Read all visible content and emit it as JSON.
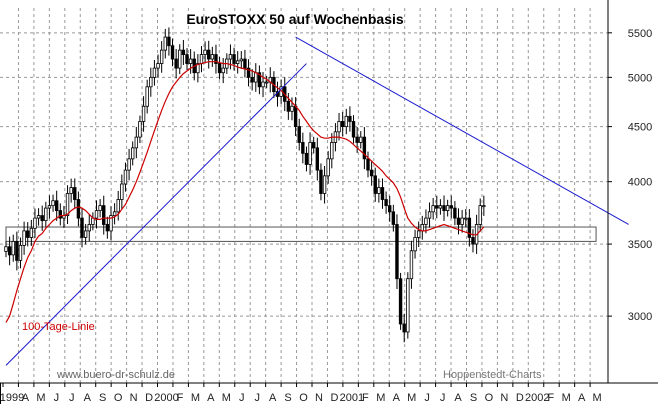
{
  "chart_data": {
    "type": "candlestick",
    "title": "EuroSTOXX 50 auf Wochenbasis",
    "ylim": [
      2600,
      5800
    ],
    "y_scale": "log",
    "y_ticks": [
      3000,
      3500,
      4000,
      4500,
      5000,
      5500
    ],
    "x_ticks": [
      "1999",
      "A",
      "M",
      "J",
      "J",
      "A",
      "S",
      "O",
      "N",
      "D",
      "2000",
      "F",
      "M",
      "A",
      "M",
      "J",
      "J",
      "A",
      "S",
      "O",
      "N",
      "D",
      "2001",
      "F",
      "M",
      "A",
      "M",
      "J",
      "J",
      "A",
      "S",
      "O",
      "N",
      "D",
      "2002",
      "F",
      "M",
      "A",
      "M"
    ],
    "x_start": "1999-02-01",
    "weekly_close": [
      3480,
      3420,
      3520,
      3380,
      3490,
      3600,
      3550,
      3620,
      3700,
      3720,
      3680,
      3780,
      3800,
      3840,
      3760,
      3700,
      3720,
      3900,
      3950,
      3850,
      3700,
      3550,
      3600,
      3650,
      3700,
      3760,
      3800,
      3650,
      3600,
      3720,
      3750,
      3850,
      3980,
      4100,
      4200,
      4300,
      4400,
      4550,
      4700,
      4900,
      5000,
      5100,
      5150,
      5300,
      5450,
      5350,
      5200,
      5100,
      5300,
      5250,
      5150,
      5200,
      5050,
      5150,
      5250,
      5300,
      5200,
      5250,
      5150,
      5050,
      5100,
      5200,
      5250,
      5150,
      5180,
      5200,
      5100,
      5000,
      4950,
      5050,
      4900,
      4950,
      4950,
      5000,
      4850,
      4800,
      4900,
      4750,
      4650,
      4700,
      4500,
      4350,
      4250,
      4150,
      4350,
      4300,
      4100,
      3900,
      4050,
      4200,
      4350,
      4450,
      4550,
      4500,
      4600,
      4550,
      4400,
      4350,
      4400,
      4200,
      4100,
      4050,
      3900,
      3950,
      3850,
      3800,
      3750,
      3650,
      3250,
      2950,
      2900,
      3250,
      3450,
      3550,
      3600,
      3650,
      3700,
      3750,
      3800,
      3780,
      3800,
      3760,
      3800,
      3780,
      3700,
      3650,
      3700,
      3700,
      3550,
      3500,
      3650,
      3800,
      3800
    ],
    "series": [
      {
        "name": "100-Tage-Linie",
        "color": "#cc0000",
        "values": [
          2960,
          3000,
          3080,
          3170,
          3250,
          3330,
          3400,
          3450,
          3520,
          3560,
          3580,
          3620,
          3650,
          3680,
          3700,
          3720,
          3720,
          3730,
          3760,
          3780,
          3790,
          3780,
          3760,
          3730,
          3700,
          3690,
          3690,
          3700,
          3700,
          3700,
          3710,
          3730,
          3770,
          3810,
          3870,
          3930,
          4000,
          4080,
          4170,
          4260,
          4360,
          4460,
          4560,
          4660,
          4750,
          4830,
          4900,
          4950,
          5000,
          5040,
          5070,
          5100,
          5120,
          5140,
          5150,
          5160,
          5170,
          5170,
          5170,
          5160,
          5150,
          5150,
          5140,
          5130,
          5110,
          5100,
          5090,
          5080,
          5070,
          5050,
          5030,
          5000,
          4980,
          4950,
          4920,
          4890,
          4860,
          4820,
          4780,
          4740,
          4700,
          4660,
          4600,
          4550,
          4500,
          4460,
          4430,
          4400,
          4390,
          4390,
          4400,
          4400,
          4400,
          4390,
          4380,
          4360,
          4330,
          4300,
          4270,
          4240,
          4210,
          4180,
          4150,
          4120,
          4090,
          4050,
          4020,
          3990,
          3940,
          3870,
          3780,
          3700,
          3660,
          3630,
          3610,
          3600,
          3600,
          3610,
          3620,
          3630,
          3640,
          3650,
          3640,
          3630,
          3620,
          3610,
          3600,
          3590,
          3580,
          3570,
          3570,
          3600,
          3630
        ]
      }
    ],
    "trend_lines": [
      {
        "name": "support",
        "color": "#1a1ad0",
        "from": {
          "x": "1999-02-01",
          "y": 2700
        },
        "to": {
          "x": "2000-09-04",
          "y": 5150
        }
      },
      {
        "name": "resistance",
        "color": "#1a1ad0",
        "from": {
          "x": "2000-08-14",
          "y": 5450
        },
        "to": {
          "x": "2002-05-20",
          "y": 3650
        }
      }
    ],
    "support_band": {
      "x_from": "1999-02-01",
      "x_to": "2002-03-18",
      "y_low": 3520,
      "y_high": 3630
    },
    "annotations": [
      "100-Tage-Linie",
      "www.buero-dr-schulz.de",
      "Hoppenstedt-Charts"
    ],
    "grid": true
  },
  "colors": {
    "candle": "#000000",
    "ma": "#cc0000",
    "trend": "#1a1ad0",
    "grid": "#999999",
    "band": "#555555"
  }
}
